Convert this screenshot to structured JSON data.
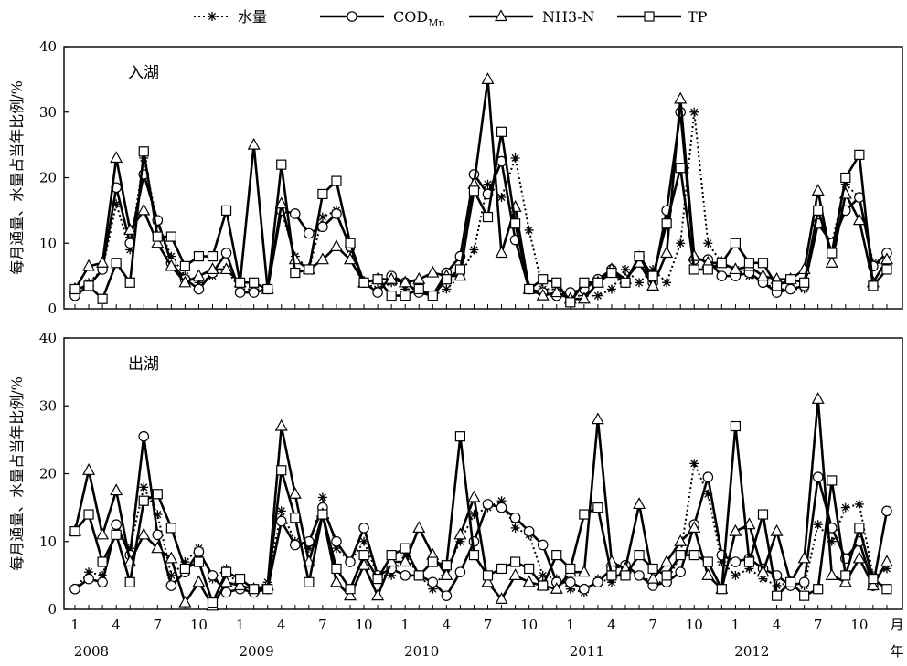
{
  "chart_data": {
    "type": "line",
    "legend": {
      "placement": "top",
      "entries": [
        {
          "key": "water",
          "label": "水量",
          "sub": ""
        },
        {
          "key": "cod",
          "label": "COD",
          "sub": "Mn"
        },
        {
          "key": "nh3",
          "label": "NH3-N",
          "sub": ""
        },
        {
          "key": "tp",
          "label": "TP",
          "sub": ""
        }
      ]
    },
    "x_axis": {
      "tick_months": [
        1,
        4,
        7,
        10,
        1,
        4,
        7,
        10,
        1,
        4,
        7,
        10,
        1,
        4,
        7,
        10,
        1,
        4,
        7,
        10
      ],
      "tick_labels": [
        "1",
        "4",
        "7",
        "10",
        "1",
        "4",
        "7",
        "10",
        "1",
        "4",
        "7",
        "10",
        "1",
        "4",
        "7",
        "10",
        "1",
        "4",
        "7",
        "10"
      ],
      "end_label": "月",
      "years": [
        "2008",
        "2009",
        "2010",
        "2011",
        "2012"
      ],
      "years_end_label": "年",
      "n_months": 60
    },
    "panels": [
      {
        "label": "入湖",
        "ylabel": "每月通量、水量占当年比例/%",
        "ylim": [
          0,
          40
        ],
        "yticks": [
          0,
          10,
          20,
          30,
          40
        ],
        "series": {
          "water": [
            2.5,
            4,
            6,
            16,
            9,
            23,
            13,
            8,
            5,
            4,
            5,
            6,
            3,
            3,
            3,
            15,
            8,
            6,
            14,
            15,
            9,
            4,
            3,
            4,
            3,
            3,
            2,
            3,
            5,
            9,
            19,
            17,
            23,
            12,
            3,
            3,
            2,
            2,
            2,
            3,
            6,
            4,
            6,
            4,
            10,
            30,
            10,
            7,
            6,
            5,
            4,
            3,
            3,
            3,
            13,
            10,
            19,
            17,
            7,
            7
          ],
          "cod": [
            2,
            3.5,
            6,
            18.5,
            10,
            20.5,
            13.5,
            7,
            4.5,
            3,
            5.5,
            8.5,
            2.5,
            2.5,
            3,
            15,
            14.5,
            11.5,
            12.5,
            14.5,
            9.5,
            4,
            2.5,
            5,
            4,
            2.5,
            2,
            5.5,
            8,
            20.5,
            17.5,
            22.5,
            10.5,
            3,
            2.5,
            2,
            2.5,
            3,
            4.5,
            6,
            4,
            8,
            4,
            15,
            30,
            7.5,
            7.5,
            5,
            5,
            5.5,
            4,
            2.5,
            3,
            3.5,
            13,
            10,
            15,
            17,
            6.5,
            8.5
          ]
        },
        "series_b": {
          "nh3": [
            3,
            6.5,
            7,
            23,
            12,
            15,
            10,
            6.5,
            4,
            5,
            6,
            6,
            4,
            25,
            3,
            16,
            7.5,
            6,
            7.5,
            9.5,
            7.5,
            4,
            4.5,
            4.5,
            4,
            4.5,
            5.5,
            5,
            5,
            19,
            35,
            8.5,
            15.5,
            3,
            2,
            2.5,
            1.5,
            1.5,
            4,
            6,
            4.5,
            7,
            3.5,
            8.5,
            32,
            8,
            7,
            7,
            6,
            6.5,
            5,
            4.5,
            4.5,
            6,
            18,
            7,
            17.5,
            13.5,
            4,
            7.5
          ],
          "tp": [
            3,
            3.5,
            1.5,
            7,
            4,
            24,
            11,
            11,
            6.5,
            8,
            8,
            15,
            4,
            4,
            3,
            22,
            5.5,
            6,
            17.5,
            19.5,
            10,
            4,
            4.5,
            2,
            2,
            3,
            2,
            4.5,
            6,
            18,
            14,
            27,
            13,
            3,
            4.5,
            4,
            1,
            4,
            4,
            5.5,
            4,
            8,
            5,
            13,
            21.5,
            6,
            6,
            7,
            10,
            7,
            7,
            3.5,
            4.5,
            4,
            15,
            8.5,
            20,
            23.5,
            3.5,
            6
          ]
        }
      },
      {
        "label": "出湖",
        "ylabel": "每月通量、水量占当年比例/%",
        "ylim": [
          0,
          40
        ],
        "yticks": [
          0,
          10,
          20,
          30,
          40
        ],
        "series": {
          "water": [
            3,
            5.5,
            5,
            12,
            9,
            18,
            14,
            5,
            7,
            9,
            4.5,
            6,
            3,
            3,
            4,
            14.5,
            10,
            9,
            16.5,
            9,
            7,
            10,
            5,
            5,
            8,
            5,
            3,
            6,
            10,
            14,
            15,
            16,
            12,
            11,
            5,
            4.5,
            3,
            2.5,
            4.5,
            4,
            6,
            5,
            4,
            4,
            8,
            21.5,
            17,
            7,
            5,
            6,
            4.5,
            3.5,
            4,
            3.5,
            12.5,
            10,
            15,
            15.5,
            5,
            6
          ]
        },
        "series_b": {
          "cod": [
            3,
            4.5,
            4,
            12.5,
            8,
            25.5,
            11,
            3.5,
            5.5,
            8.5,
            5,
            2.5,
            3,
            2.5,
            3,
            13,
            9.5,
            10,
            15,
            10,
            7,
            12,
            5,
            6,
            5,
            5,
            4,
            2,
            5.5,
            10,
            15.5,
            15,
            13.5,
            11.5,
            9.5,
            4,
            4,
            3,
            4,
            6,
            6.5,
            5,
            3.5,
            4,
            5.5,
            12.5,
            19.5,
            8,
            7,
            7.5,
            6,
            5,
            3.5,
            4,
            19.5,
            12,
            7.5,
            10,
            3.5,
            14.5
          ],
          "nh3": [
            11.5,
            20.5,
            11,
            17.5,
            7,
            11,
            9,
            7.5,
            1,
            4,
            0.5,
            4,
            3.5,
            3,
            3.5,
            27,
            17,
            7,
            14,
            4,
            2,
            6.5,
            2,
            7,
            7,
            12,
            8,
            5,
            11,
            16.5,
            4,
            1.5,
            5,
            4,
            3.5,
            3,
            5.5,
            5.5,
            28,
            7,
            6,
            15.5,
            4.5,
            7,
            10,
            12,
            5,
            3,
            11.5,
            12.5,
            5.5,
            11.5,
            4,
            7.5,
            31,
            5,
            4,
            7.5,
            3.5,
            7
          ],
          "tp": [
            11.5,
            14,
            7,
            11,
            4,
            16,
            17,
            12,
            6,
            7,
            1,
            5.5,
            4.5,
            3,
            3,
            20.5,
            13.5,
            4,
            14,
            6,
            3,
            8,
            4.5,
            8,
            9,
            5,
            7,
            6.5,
            25.5,
            8,
            5,
            6,
            7,
            6,
            3.5,
            8,
            6,
            14,
            15,
            5,
            5,
            8,
            6,
            5,
            8,
            8,
            7,
            3,
            27,
            7,
            14,
            2,
            4,
            2,
            3,
            19,
            5,
            12,
            4.5,
            3
          ]
        }
      }
    ]
  }
}
